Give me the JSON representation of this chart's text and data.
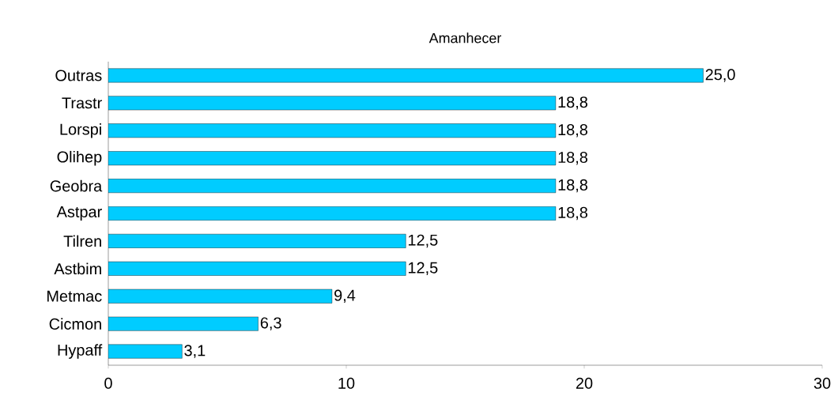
{
  "chart_data": {
    "type": "bar",
    "orientation": "horizontal",
    "title": "Amanhecer",
    "categories": [
      "Outras",
      "Trastr",
      "Lorspi",
      "Olihep",
      "Geobra",
      "Astpar",
      "Tilren",
      "Astbim",
      "Metmac",
      "Cicmon",
      "Hypaff"
    ],
    "values": [
      25.0,
      18.8,
      18.8,
      18.8,
      18.8,
      18.8,
      12.5,
      12.5,
      9.4,
      6.3,
      3.1
    ],
    "value_labels": [
      "25,0",
      "18,8",
      "18,8",
      "18,8",
      "18,8",
      "18,8",
      "12,5",
      "12,5",
      "9,4",
      "6,3",
      "3,1"
    ],
    "color": "#00ccff",
    "xlim": [
      0,
      30
    ],
    "xticks": [
      0,
      10,
      20,
      30
    ]
  }
}
